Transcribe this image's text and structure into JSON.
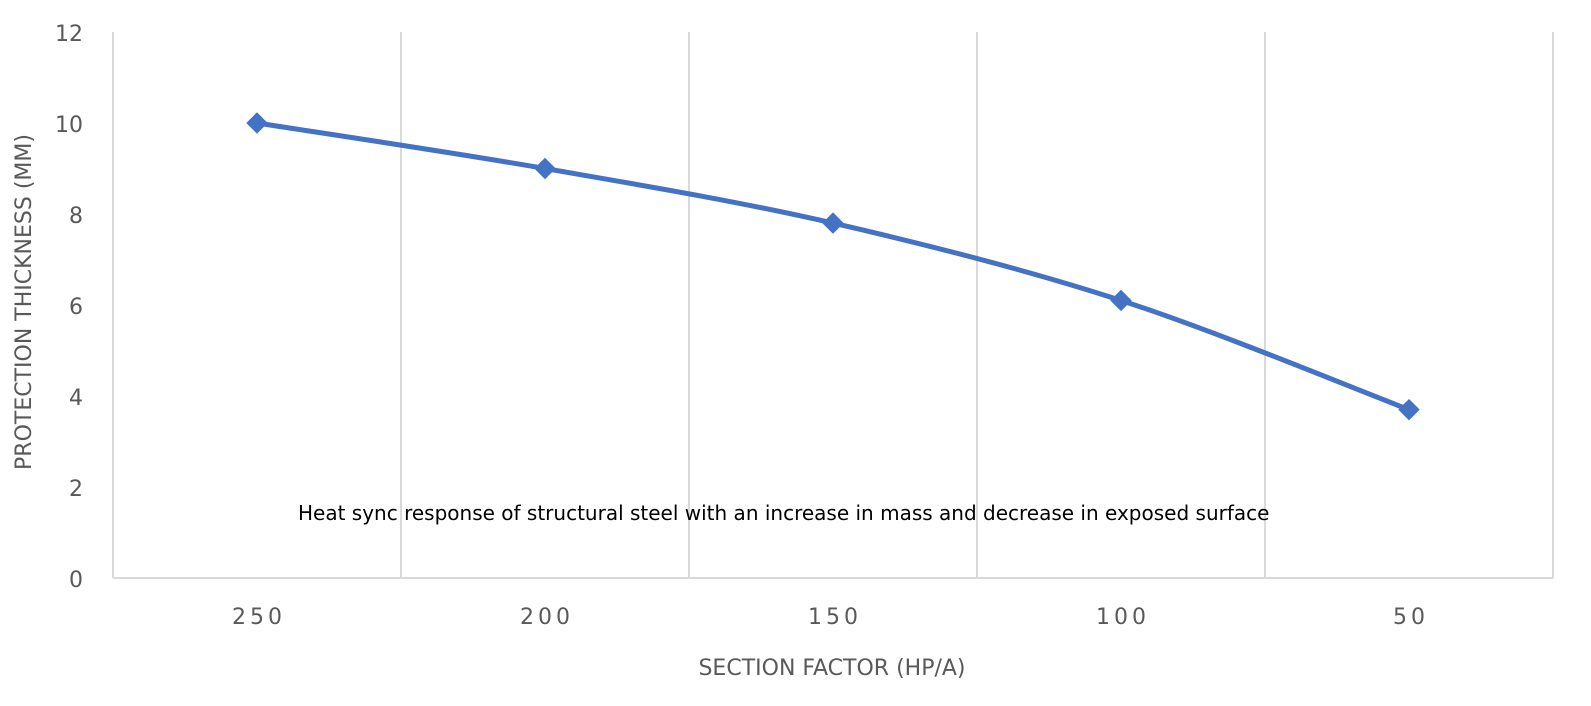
{
  "chart_data": {
    "type": "line",
    "categories": [
      "250",
      "200",
      "150",
      "100",
      "50"
    ],
    "series": [
      {
        "values": [
          10.0,
          9.0,
          7.8,
          6.1,
          3.7
        ],
        "color": "#4472C4",
        "marker": "diamond",
        "smooth": true
      }
    ],
    "xlabel": "SECTION FACTOR (HP/A)",
    "ylabel": "PROTECTION THICKNESS (MM)",
    "ylim": [
      0,
      12
    ],
    "yticks": [
      "0",
      "2",
      "4",
      "6",
      "8",
      "10",
      "12"
    ],
    "annotation": "Heat sync response of structural steel with an increase in mass and decrease in exposed surface",
    "grid": "vertical",
    "gridline_color": "#D9D9D9",
    "axis_color": "#D9D9D9"
  }
}
